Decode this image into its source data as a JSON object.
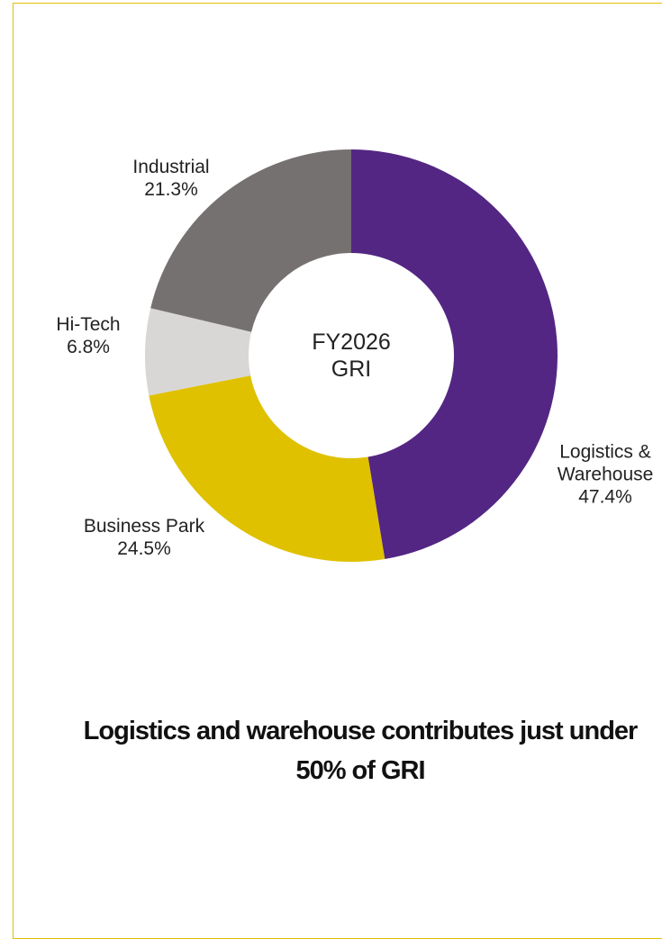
{
  "chart_data": {
    "type": "donut",
    "center_label": "FY2026 GRI",
    "categories": [
      "Logistics & Warehouse",
      "Business Park",
      "Hi-Tech",
      "Industrial"
    ],
    "values": [
      47.4,
      24.5,
      6.8,
      21.3
    ],
    "value_labels": [
      "47.4%",
      "24.5%",
      "6.8%",
      "21.3%"
    ],
    "colors": [
      "#532683",
      "#dfc100",
      "#d9d7d6",
      "#767171"
    ],
    "caption": "Logistics and warehouse contributes just under 50% of GRI"
  }
}
